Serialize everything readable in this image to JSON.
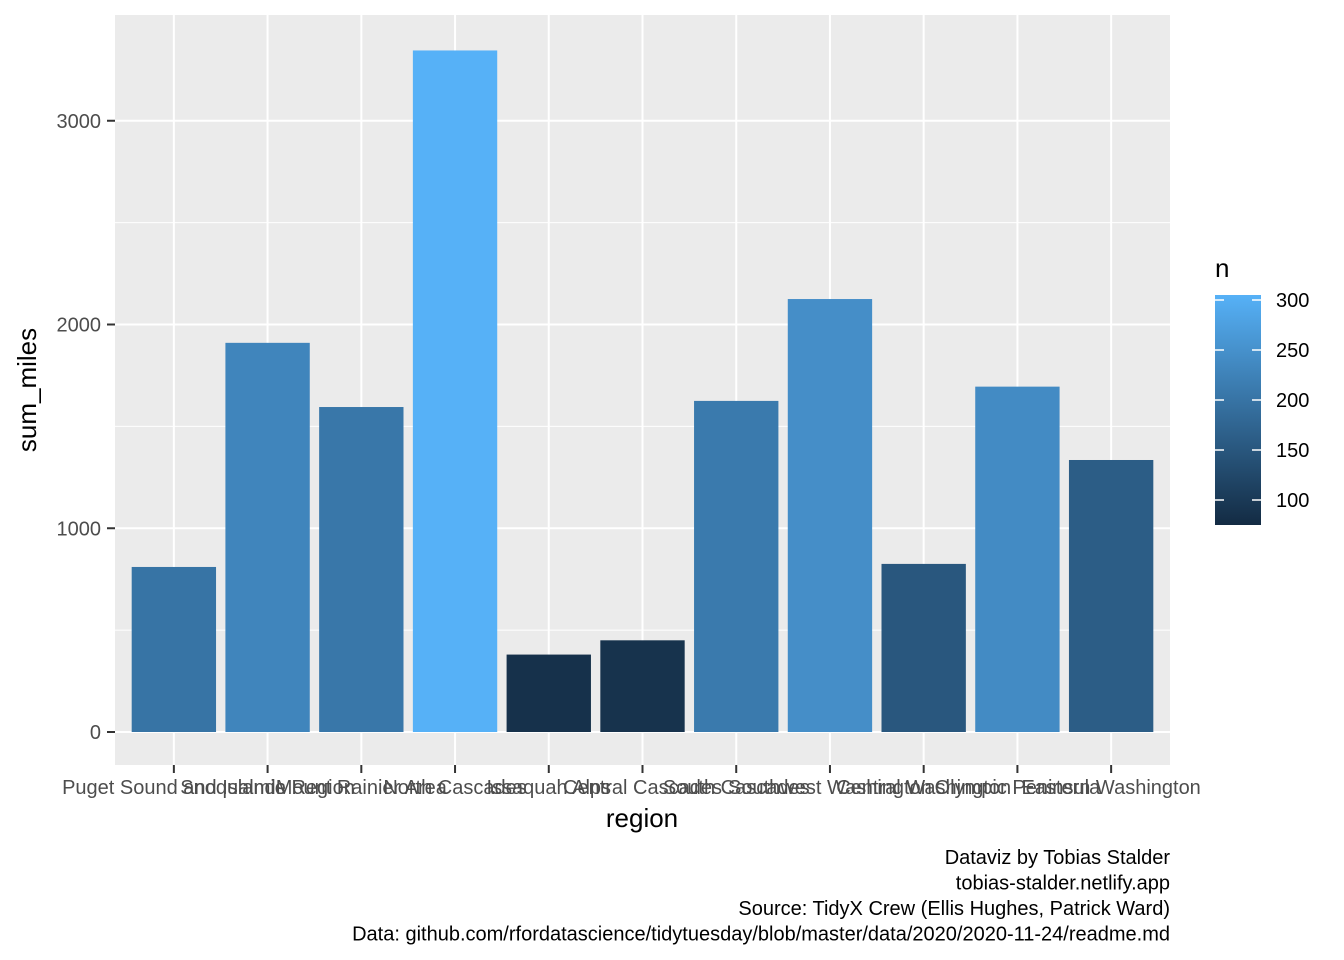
{
  "chart_data": {
    "type": "bar",
    "xlabel": "region",
    "ylabel": "sum_miles",
    "ylim": [
      -150,
      3500
    ],
    "yticks": [
      0,
      1000,
      2000,
      3000
    ],
    "grid": true,
    "categories": [
      "Puget Sound and Islands",
      "Snoqualmie Region",
      "Mount Rainier Area",
      "North Cascades",
      "Issaquah Alps",
      "Central Cascades",
      "South Cascades",
      "Southwest Washington",
      "Central Washington",
      "Olympic Peninsula",
      "Eastern Washington"
    ],
    "values": [
      810,
      1910,
      1595,
      3345,
      380,
      450,
      1625,
      2125,
      825,
      1695,
      1335
    ],
    "fill_n": [
      200,
      230,
      205,
      305,
      85,
      88,
      210,
      245,
      150,
      240,
      160
    ],
    "legend": {
      "title": "n",
      "placement": "right",
      "range": [
        75,
        305
      ],
      "ticks": [
        100,
        150,
        200,
        250,
        300
      ],
      "color_low": "#132B43",
      "color_high": "#56B1F7"
    },
    "caption": [
      "Dataviz by Tobias Stalder",
      "tobias-stalder.netlify.app",
      "Source: TidyX Crew (Ellis Hughes, Patrick Ward)",
      "Data: github.com/rfordatascience/tidytuesday/blob/master/data/2020/2020-11-24/readme.md"
    ]
  }
}
